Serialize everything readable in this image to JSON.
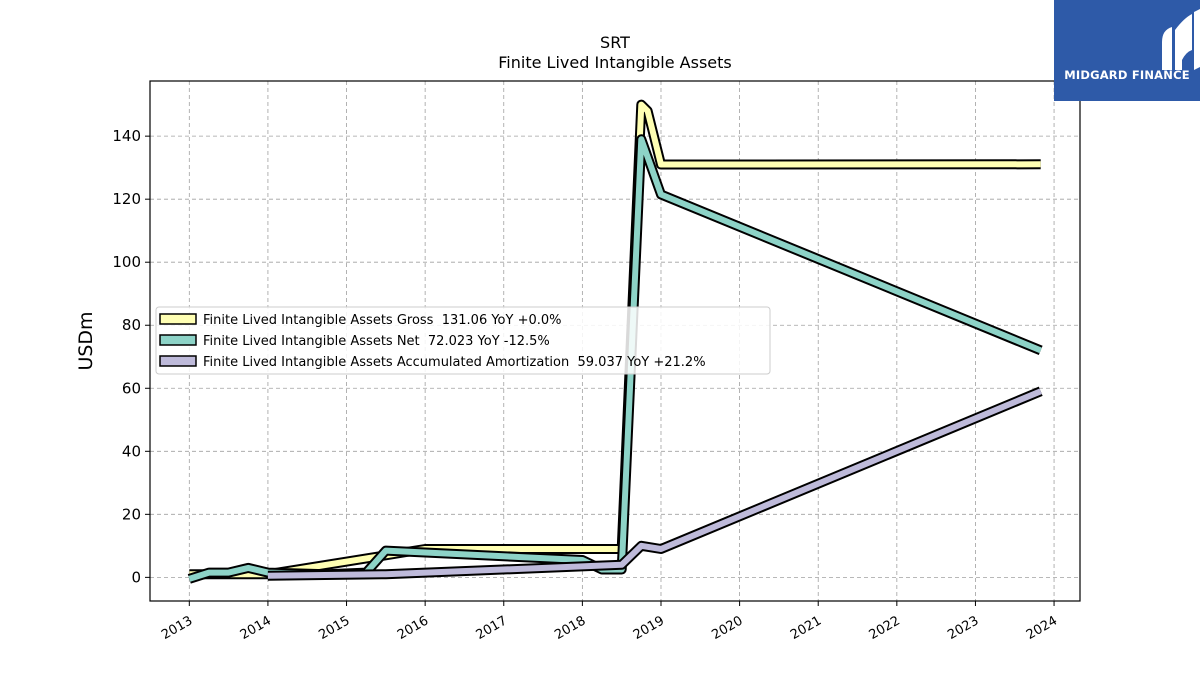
{
  "chart_data": {
    "type": "line",
    "title": "SRT",
    "subtitle": "Finite Lived Intangible Assets",
    "ylabel": "USDm",
    "xlabel": "",
    "ylim": [
      -7.5,
      157.5
    ],
    "xlim": [
      2012.5,
      2024.33
    ],
    "yticks": [
      0,
      20,
      40,
      60,
      80,
      100,
      120,
      140
    ],
    "xticks": [
      "2013",
      "2014",
      "2015",
      "2016",
      "2017",
      "2018",
      "2019",
      "2020",
      "2021",
      "2022",
      "2023",
      "2024"
    ],
    "grid": true,
    "legend_position": "center-left",
    "series": [
      {
        "name": "Finite Lived Intangible Assets Gross  131.06 YoY +0.0%",
        "color": "#ffffb3",
        "x": [
          2013.0,
          2014.0,
          2016.0,
          2018.5,
          2018.75,
          2018.83,
          2019.0,
          2023.83
        ],
        "y": [
          1.0,
          1.0,
          9.0,
          9.0,
          150.0,
          148.0,
          131.0,
          131.06
        ]
      },
      {
        "name": "Finite Lived Intangible Assets Net  72.023 YoY -12.5%",
        "color": "#8dd3c7",
        "x": [
          2013.0,
          2013.25,
          2013.5,
          2013.75,
          2014.0,
          2014.75,
          2015.25,
          2015.5,
          2018.0,
          2018.25,
          2018.5,
          2018.75,
          2019.0,
          2023.83
        ],
        "y": [
          -0.5,
          1.5,
          1.5,
          3.0,
          1.5,
          1.0,
          1.5,
          8.5,
          5.5,
          2.5,
          2.5,
          139.0,
          121.5,
          72.023
        ]
      },
      {
        "name": "Finite Lived Intangible Assets Accumulated Amortization  59.037 YoY +21.2%",
        "color": "#bebada",
        "x": [
          2014.0,
          2015.5,
          2018.5,
          2018.75,
          2019.0,
          2023.83
        ],
        "y": [
          0.5,
          1.0,
          4.0,
          10.0,
          9.0,
          59.037
        ]
      }
    ]
  },
  "logo": {
    "text": "MIDGARD FINANCE",
    "color": "#2e5aa8"
  }
}
